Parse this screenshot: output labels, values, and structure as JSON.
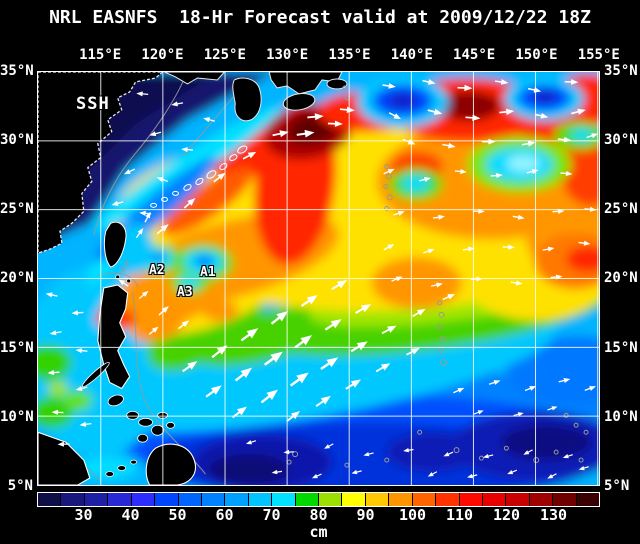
{
  "title": "NRL EASNFS  18-Hr Forecast valid at 2009/12/22 18Z",
  "map": {
    "field_label": "SSH",
    "eddy_labels": [
      "A1",
      "A2",
      "A3"
    ],
    "lon_ticks": [
      "115°E",
      "120°E",
      "125°E",
      "130°E",
      "135°E",
      "140°E",
      "145°E",
      "150°E",
      "155°E"
    ],
    "lat_ticks": [
      "35°N",
      "30°N",
      "25°N",
      "20°N",
      "15°N",
      "10°N",
      "5°N"
    ]
  },
  "colorbar": {
    "units_label": "cm",
    "tick_labels": [
      "30",
      "40",
      "50",
      "60",
      "70",
      "80",
      "90",
      "100",
      "110",
      "120",
      "130"
    ],
    "cell_colors": [
      "#0f0f48",
      "#17177d",
      "#1f1fa5",
      "#2828d7",
      "#2d2dff",
      "#0046ff",
      "#0064ff",
      "#0082ff",
      "#00a0ff",
      "#00c3ff",
      "#00e1ff",
      "#00d800",
      "#9be000",
      "#ffff00",
      "#ffc800",
      "#ff9600",
      "#ff6400",
      "#ff3200",
      "#ff0a00",
      "#e60000",
      "#c80000",
      "#a00000",
      "#700000",
      "#380000"
    ]
  },
  "colors": {
    "background": "#000000",
    "text": "#ffffff",
    "grid": "#ffffff",
    "land": "#000000",
    "coastline_shelf": "#999999",
    "arrows": "#ffffff"
  }
}
